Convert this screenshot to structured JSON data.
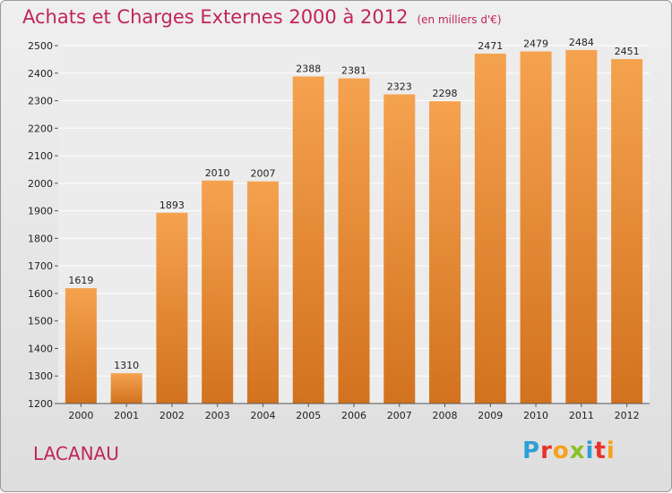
{
  "title": "Achats et Charges Externes 2000 à 2012",
  "unit": "(en milliers d'€)",
  "commune": "LACANAU",
  "logo": {
    "letters": [
      "P",
      "r",
      "o",
      "x",
      "i",
      "t",
      "i"
    ],
    "colors": [
      "#2e9fd4",
      "#e8322b",
      "#f7a11a",
      "#8cbf2a",
      "#2e9fd4",
      "#e8322b",
      "#f7a11a"
    ]
  },
  "chart_data": {
    "type": "bar",
    "categories": [
      "2000",
      "2001",
      "2002",
      "2003",
      "2004",
      "2005",
      "2006",
      "2007",
      "2008",
      "2009",
      "2010",
      "2011",
      "2012"
    ],
    "values": [
      1619,
      1310,
      1893,
      2010,
      2007,
      2388,
      2381,
      2323,
      2298,
      2471,
      2479,
      2484,
      2451
    ],
    "ylim": [
      1200,
      2500
    ],
    "yticks": [
      1200,
      1300,
      1400,
      1500,
      1600,
      1700,
      1800,
      1900,
      2000,
      2100,
      2200,
      2300,
      2400,
      2500
    ],
    "grid": true,
    "bar_colors": [
      "#f5a24f",
      "#d2721f"
    ]
  }
}
